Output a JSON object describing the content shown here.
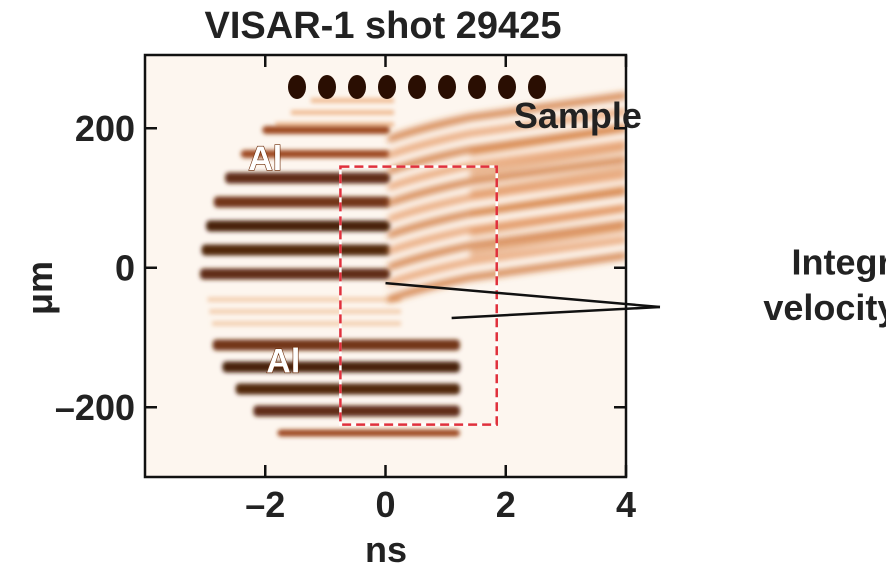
{
  "chart_data": {
    "type": "heatmap",
    "title": "VISAR-1 shot 29425",
    "xlabel": "ns",
    "ylabel": "μm",
    "xlim": [
      -4,
      4
    ],
    "ylim": [
      -300,
      305
    ],
    "x_ticks": [
      -2,
      0,
      2,
      4
    ],
    "x_tick_labels": [
      "–2",
      "0",
      "2",
      "4"
    ],
    "y_ticks": [
      200,
      0,
      -200
    ],
    "y_tick_labels": [
      "200",
      "0",
      "–200"
    ],
    "grid": false,
    "colormap": "white-orange-dark brown",
    "annotations": [
      {
        "text": "Sample",
        "x": 3.2,
        "y": 200
      },
      {
        "text": "Al",
        "x": -2.0,
        "y": 140
      },
      {
        "text": "Al",
        "x": -1.7,
        "y": -150
      },
      {
        "text": "Integrated",
        "x": 8.2,
        "y": -10
      },
      {
        "text": "velocity",
        "x": 7.4,
        "y": -75
      }
    ],
    "callout_targets": [
      {
        "x": 0.0,
        "y": -22
      },
      {
        "x": 1.1,
        "y": -72
      }
    ],
    "highlight_box": {
      "x0": -0.75,
      "x1": 1.85,
      "y0": -225,
      "y1": 145,
      "style": "red-white dashed"
    }
  }
}
